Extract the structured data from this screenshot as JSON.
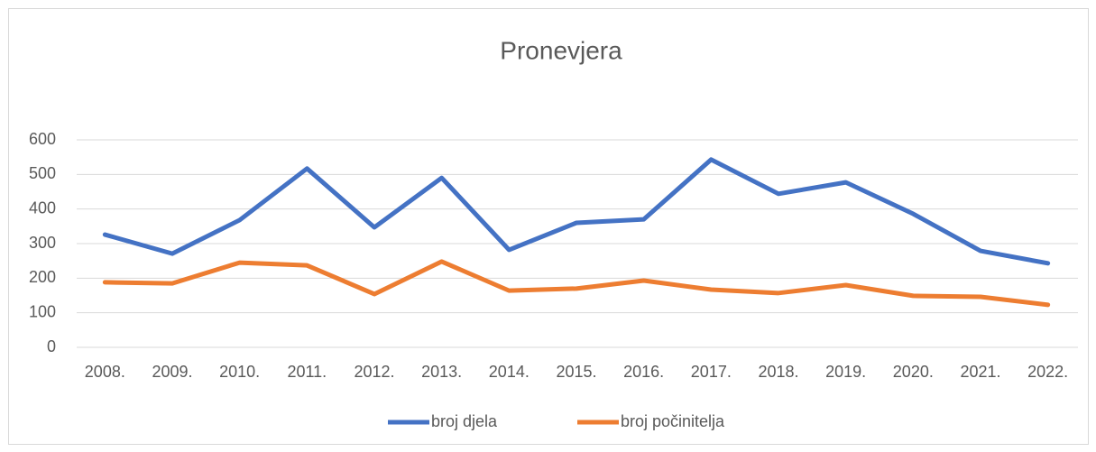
{
  "chart_data": {
    "type": "line",
    "title": "Pronevjera",
    "categories": [
      "2008.",
      "2009.",
      "2010.",
      "2011.",
      "2012.",
      "2013.",
      "2014.",
      "2015.",
      "2016.",
      "2017.",
      "2018.",
      "2019.",
      "2020.",
      "2021.",
      "2022."
    ],
    "series": [
      {
        "name": "broj djela",
        "color": "#4472c4",
        "values": [
          326,
          271,
          368,
          517,
          347,
          490,
          282,
          360,
          370,
          543,
          444,
          477,
          386,
          279,
          243
        ]
      },
      {
        "name": "broj počinitelja",
        "color": "#ed7d31",
        "values": [
          188,
          185,
          245,
          237,
          154,
          248,
          164,
          170,
          193,
          167,
          157,
          180,
          149,
          146,
          123
        ]
      }
    ],
    "ylim": [
      0,
      600
    ],
    "yticks": [
      0,
      100,
      200,
      300,
      400,
      500,
      600
    ],
    "grid": true,
    "legend": "bottom"
  }
}
